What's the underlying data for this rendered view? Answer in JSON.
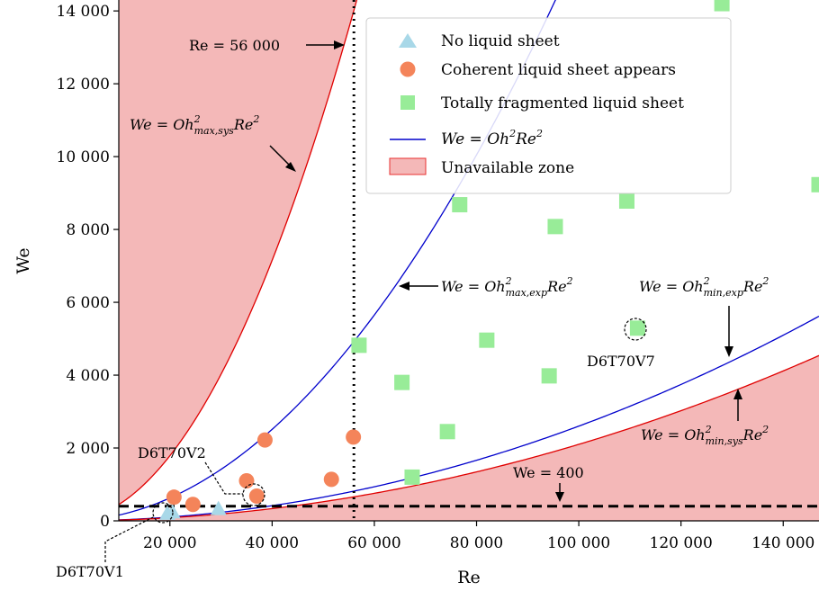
{
  "chart_data": {
    "type": "scatter",
    "xlabel": "Re",
    "ylabel": "We",
    "xlim": [
      10000,
      147000
    ],
    "ylim": [
      0,
      14300
    ],
    "x_ticks": [
      20000,
      40000,
      60000,
      80000,
      100000,
      120000,
      140000
    ],
    "x_tick_labels": [
      "20 000",
      "40 000",
      "60 000",
      "80 000",
      "100 000",
      "120 000",
      "140 000"
    ],
    "y_ticks": [
      0,
      2000,
      4000,
      6000,
      8000,
      10000,
      12000,
      14000
    ],
    "y_tick_labels": [
      "0",
      "2 000",
      "4 000",
      "6 000",
      "8 000",
      "10 000",
      "12 000",
      "14 000"
    ],
    "grid": false,
    "legend_position": "top-right",
    "series": [
      {
        "name": "No liquid sheet",
        "marker": "triangle",
        "color": "#a8d8e8",
        "points": [
          [
            19500,
            200
          ],
          [
            20500,
            240
          ],
          [
            29500,
            330
          ]
        ]
      },
      {
        "name": "Coherent liquid sheet appears",
        "marker": "circle",
        "color": "#f4845a",
        "points": [
          [
            20800,
            650
          ],
          [
            24500,
            450
          ],
          [
            35000,
            1100
          ],
          [
            37000,
            680
          ],
          [
            38600,
            2220
          ],
          [
            51600,
            1140
          ],
          [
            55900,
            2300
          ]
        ]
      },
      {
        "name": "Totally fragmented liquid sheet",
        "marker": "square",
        "color": "#98ec98",
        "points": [
          [
            57000,
            4820
          ],
          [
            65400,
            3800
          ],
          [
            67400,
            1200
          ],
          [
            74300,
            2450
          ],
          [
            76700,
            8680
          ],
          [
            82000,
            4960
          ],
          [
            94200,
            3980
          ],
          [
            95400,
            8080
          ],
          [
            109400,
            8780
          ],
          [
            111500,
            5290
          ],
          [
            128000,
            14200
          ],
          [
            147000,
            9230
          ]
        ]
      }
    ],
    "curves": [
      {
        "name": "We = Oh²Re²",
        "oh2": 1.57e-06,
        "color": "#0000cc"
      },
      {
        "oh2": 2.6e-07,
        "color": "#0000cc"
      },
      {
        "oh2": 2.1e-07,
        "color": "#e00000"
      },
      {
        "oh2": 4.47e-06,
        "color": "#e00000"
      }
    ],
    "unavailable_zone": {
      "name": "Unavailable zone",
      "fill": "#f4b8b8",
      "edge": "#e83030"
    },
    "hlines": [
      {
        "value": 400,
        "style": "dashed",
        "color": "#000000"
      }
    ],
    "vlines": [
      {
        "value": 56000,
        "style": "dotted",
        "color": "#000000"
      }
    ],
    "annotations": {
      "re_line": "Re = 56 000",
      "we_line": "We = 400",
      "oh_max_sys": {
        "lhs": "We = Oh",
        "sup": "2",
        "sub": "max,sys",
        "rhs": "Re",
        "rsup": "2"
      },
      "oh_max_exp": {
        "lhs": "We = Oh",
        "sup": "2",
        "sub": "max,exp",
        "rhs": "Re",
        "rsup": "2"
      },
      "oh_min_exp": {
        "lhs": "We = Oh",
        "sup": "2",
        "sub": "min,exp",
        "rhs": "Re",
        "rsup": "2"
      },
      "oh_min_sys": {
        "lhs": "We = Oh",
        "sup": "2",
        "sub": "min,sys",
        "rhs": "Re",
        "rsup": "2"
      },
      "d6t70v1": "D6T70V1",
      "d6t70v2": "D6T70V2",
      "d6t70v7": "D6T70V7"
    },
    "legend": {
      "entries": [
        "No liquid sheet",
        "Coherent liquid sheet appears",
        "Totally fragmented liquid sheet",
        "Unavailable zone"
      ],
      "curve_entry": {
        "lhs": "We = Oh",
        "sup": "2",
        "rhs": "Re",
        "rsup": "2"
      }
    }
  }
}
